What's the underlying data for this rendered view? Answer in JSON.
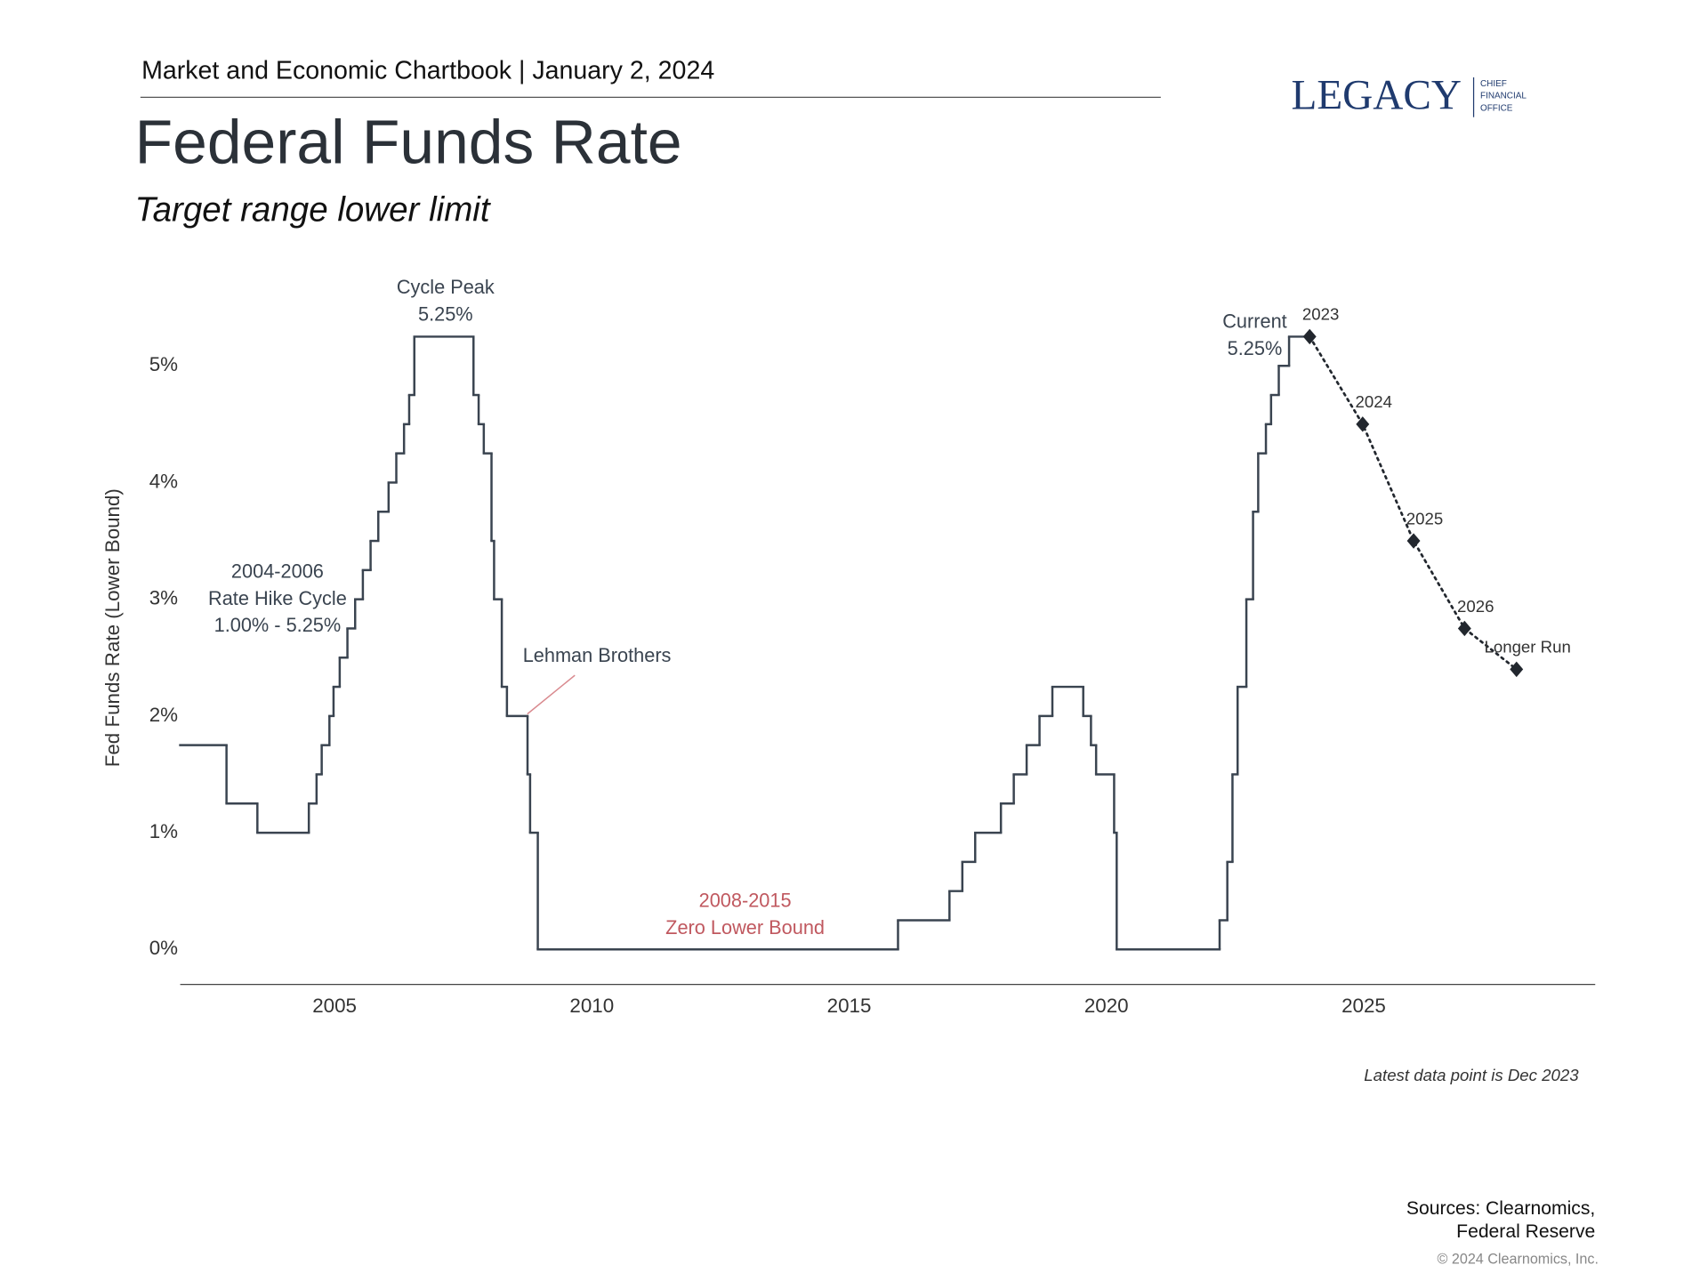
{
  "header": {
    "chartbook": "Market and Economic Chartbook | January 2, 2024",
    "logo": "LEGACY",
    "logo_sub": [
      "CHIEF",
      "FINANCIAL",
      "OFFICE"
    ]
  },
  "chart_data": {
    "type": "line",
    "step": "post",
    "title": "Federal Funds Rate",
    "subtitle": "Target range lower limit",
    "ylabel": "Fed Funds Rate (Lower Bound)",
    "xlim": [
      2002,
      2029.5
    ],
    "xticks": [
      2005,
      2010,
      2015,
      2020,
      2025
    ],
    "ylim": [
      -0.3,
      5.8
    ],
    "yticks": [
      {
        "value": 0,
        "label": "0%"
      },
      {
        "value": 1,
        "label": "1%"
      },
      {
        "value": 2,
        "label": "2%"
      },
      {
        "value": 3,
        "label": "3%"
      },
      {
        "value": 4,
        "label": "4%"
      },
      {
        "value": 5,
        "label": "5%"
      }
    ],
    "grid": false,
    "series": [
      {
        "name": "Federal Funds Rate",
        "color": "#3a4450",
        "style": "solid",
        "x": [
          2002.0,
          2002.9,
          2003.5,
          2004.5,
          2004.65,
          2004.75,
          2004.9,
          2004.98,
          2005.1,
          2005.25,
          2005.4,
          2005.55,
          2005.7,
          2005.85,
          2006.05,
          2006.2,
          2006.35,
          2006.45,
          2006.55,
          2007.7,
          2007.8,
          2007.9,
          2008.05,
          2008.1,
          2008.25,
          2008.35,
          2008.75,
          2008.8,
          2008.95,
          2015.95,
          2016.95,
          2017.2,
          2017.45,
          2017.95,
          2018.2,
          2018.45,
          2018.7,
          2018.95,
          2019.55,
          2019.7,
          2019.8,
          2020.15,
          2020.2,
          2022.2,
          2022.35,
          2022.45,
          2022.55,
          2022.72,
          2022.85,
          2022.95,
          2023.1,
          2023.2,
          2023.35,
          2023.55,
          2023.95
        ],
        "values": [
          1.75,
          1.25,
          1.0,
          1.25,
          1.5,
          1.75,
          2.0,
          2.25,
          2.5,
          2.75,
          3.0,
          3.25,
          3.5,
          3.75,
          4.0,
          4.25,
          4.5,
          4.75,
          5.25,
          4.75,
          4.5,
          4.25,
          3.5,
          3.0,
          2.25,
          2.0,
          1.5,
          1.0,
          0,
          0.25,
          0.5,
          0.75,
          1.0,
          1.25,
          1.5,
          1.75,
          2.0,
          2.25,
          2.0,
          1.75,
          1.5,
          1.0,
          0,
          0.25,
          0.75,
          1.5,
          2.25,
          3.0,
          3.75,
          4.25,
          4.5,
          4.75,
          5.0,
          5.25,
          5.25
        ]
      },
      {
        "name": "Fed Projections",
        "color": "#22272e",
        "style": "dotted",
        "x": [
          2023.95,
          2024.98,
          2025.97,
          2026.96,
          2027.97
        ],
        "values": [
          5.25,
          4.5,
          3.5,
          2.75,
          2.4
        ],
        "point_labels": [
          "2023",
          "2024",
          "2025",
          "2026",
          "Longer Run"
        ]
      }
    ],
    "annotations": [
      {
        "lines": [
          "Cycle Peak",
          "5.25%"
        ],
        "color": "#3a4450"
      },
      {
        "lines": [
          "2004-2006",
          "Rate Hike Cycle",
          "1.00% - 5.25%"
        ],
        "color": "#3a4450"
      },
      {
        "lines": [
          "Lehman Brothers"
        ],
        "color": "#3a4450"
      },
      {
        "lines": [
          "2008-2015",
          "Zero Lower Bound"
        ],
        "color": "#c0585f"
      },
      {
        "lines": [
          "Current",
          "5.25%"
        ],
        "color": "#3a4450"
      }
    ],
    "note": "Latest data point is Dec 2023"
  },
  "footer": {
    "sources": [
      "Sources: Clearnomics,",
      "Federal Reserve"
    ],
    "copyright": "© 2024 Clearnomics, Inc."
  }
}
